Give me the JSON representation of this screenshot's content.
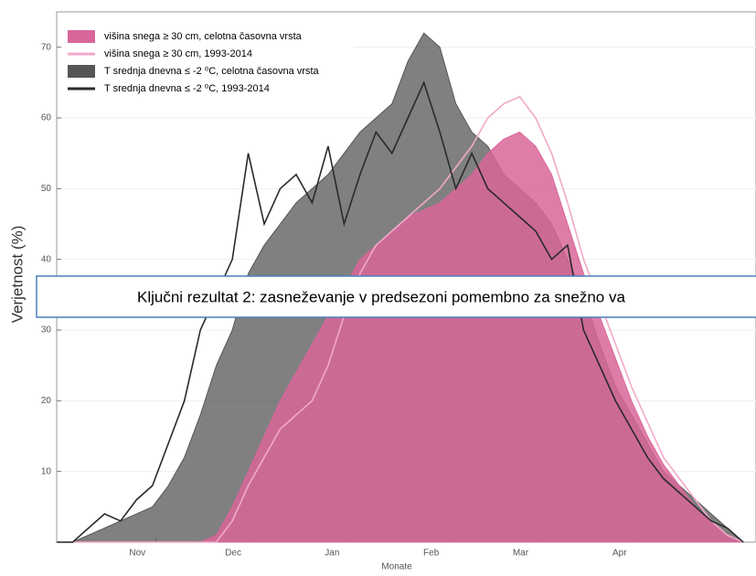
{
  "chart_data": {
    "type": "area",
    "xlabel": "Monate",
    "ylabel": "Verjetnost (%)",
    "annotation": "Ključni rezultat 2: zasneževanje v predsezoni pomembno za snežno va",
    "x": [
      0,
      5,
      10,
      15,
      20,
      25,
      30,
      35,
      40,
      45,
      50,
      55,
      60,
      65,
      70,
      75,
      80,
      85,
      90,
      95,
      100,
      105,
      110,
      115,
      120,
      125,
      130,
      135,
      140,
      145,
      150,
      155,
      160,
      165,
      170,
      175,
      180,
      185,
      190,
      195,
      200,
      205,
      210,
      215
    ],
    "xlim": [
      0,
      219
    ],
    "xticks": [
      {
        "value": 31,
        "label": "Nov"
      },
      {
        "value": 61,
        "label": "Dec"
      },
      {
        "value": 92,
        "label": "Jan"
      },
      {
        "value": 123,
        "label": "Feb"
      },
      {
        "value": 151,
        "label": "Mar"
      },
      {
        "value": 182,
        "label": "Apr"
      }
    ],
    "ylim": [
      0,
      75
    ],
    "yticks": [
      10,
      20,
      30,
      40,
      50,
      60,
      70
    ],
    "grid": true,
    "legend": "upper left",
    "series": [
      {
        "name": "T srednja dnevna ≤ -2 ⁰C, celotna časovna vrsta",
        "kind": "area",
        "color": "#555555",
        "opacity": 0.75,
        "values": [
          0,
          0,
          1,
          2,
          3,
          4,
          5,
          8,
          12,
          18,
          25,
          30,
          38,
          42,
          45,
          48,
          50,
          52,
          55,
          58,
          60,
          62,
          68,
          72,
          70,
          62,
          58,
          56,
          52,
          50,
          48,
          45,
          40,
          35,
          28,
          22,
          18,
          14,
          10,
          8,
          6,
          4,
          2,
          0
        ]
      },
      {
        "name": "višina snega ≥ 30 cm, celotna časovna vrsta",
        "kind": "area",
        "color": "#d9669a",
        "opacity": 0.85,
        "values": [
          0,
          0,
          0,
          0,
          0,
          0,
          0,
          0,
          0,
          0,
          1,
          5,
          10,
          15,
          20,
          24,
          28,
          32,
          36,
          40,
          42,
          44,
          46,
          47,
          48,
          50,
          52,
          55,
          57,
          58,
          56,
          52,
          45,
          38,
          32,
          26,
          20,
          15,
          11,
          8,
          5,
          3,
          1,
          0
        ]
      },
      {
        "name": "višina snega ≥ 30 cm, 1993-2014",
        "kind": "line",
        "color": "#f2a9c9",
        "opacity": 1,
        "values": [
          0,
          0,
          0,
          0,
          0,
          0,
          0,
          0,
          0,
          0,
          0,
          3,
          8,
          12,
          16,
          18,
          20,
          25,
          32,
          38,
          42,
          44,
          46,
          48,
          50,
          53,
          56,
          60,
          62,
          63,
          60,
          55,
          48,
          40,
          34,
          28,
          22,
          17,
          12,
          9,
          6,
          3,
          1,
          0
        ]
      },
      {
        "name": "T srednja dnevna ≤ -2 ⁰C, 1993-2014",
        "kind": "line",
        "color": "#2a2a2a",
        "opacity": 1,
        "values": [
          0,
          0,
          2,
          4,
          3,
          6,
          8,
          14,
          20,
          30,
          35,
          40,
          55,
          45,
          50,
          52,
          48,
          56,
          45,
          52,
          58,
          55,
          60,
          65,
          58,
          50,
          55,
          50,
          48,
          46,
          44,
          40,
          42,
          30,
          25,
          20,
          16,
          12,
          9,
          7,
          5,
          3,
          2,
          0
        ]
      }
    ]
  }
}
